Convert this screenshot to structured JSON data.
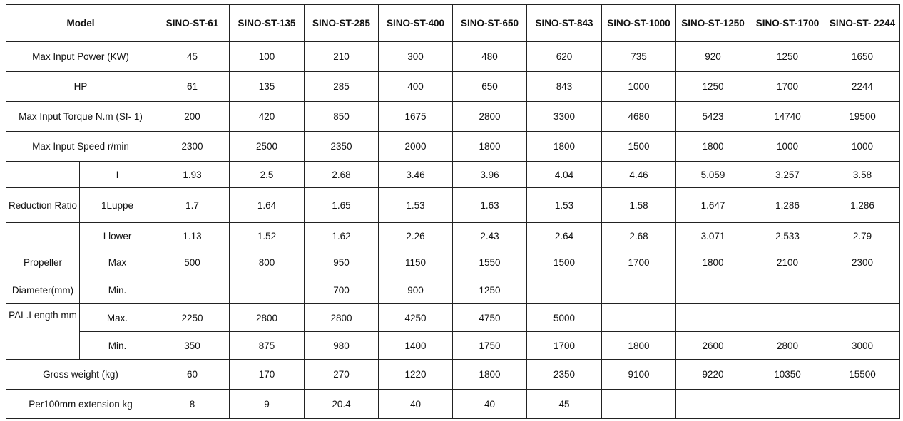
{
  "table": {
    "header_label": "Model",
    "models": [
      "SINO-ST-61",
      "SINO-ST-135",
      "SINO-ST-285",
      "SINO-ST-400",
      "SINO-ST-650",
      "SINO-ST-843",
      "SINO-ST-1000",
      "SINO-ST-1250",
      "SINO-ST-1700",
      "SINO-ST- 2244"
    ],
    "rows": [
      {
        "label": "Max Input Power (KW)",
        "values": [
          "45",
          "100",
          "210",
          "300",
          "480",
          "620",
          "735",
          "920",
          "1250",
          "1650"
        ]
      },
      {
        "label": "HP",
        "values": [
          "61",
          "135",
          "285",
          "400",
          "650",
          "843",
          "1000",
          "1250",
          "1700",
          "2244"
        ]
      },
      {
        "label": "Max Input Torque N.m (Sf- 1)",
        "values": [
          "200",
          "420",
          "850",
          "1675",
          "2800",
          "3300",
          "4680",
          "5423",
          "14740",
          "19500"
        ]
      },
      {
        "label": "Max Input Speed r/min",
        "values": [
          "2300",
          "2500",
          "2350",
          "2000",
          "1800",
          "1800",
          "1500",
          "1800",
          "1000",
          "1000"
        ]
      },
      {
        "label": "",
        "sub": "I",
        "values": [
          "1.93",
          "2.5",
          "2.68",
          "3.46",
          "3.96",
          "4.04",
          "4.46",
          "5.059",
          "3.257",
          "3.58"
        ]
      },
      {
        "label": "Reduction Ratio",
        "sub": "1Luppe",
        "values": [
          "1.7",
          "1.64",
          "1.65",
          "1.53",
          "1.63",
          "1.53",
          "1.58",
          "1.647",
          "1.286",
          "1.286"
        ]
      },
      {
        "label": "",
        "sub": "I lower",
        "values": [
          "1.13",
          "1.52",
          "1.62",
          "2.26",
          "2.43",
          "2.64",
          "2.68",
          "3.071",
          "2.533",
          "2.79"
        ]
      },
      {
        "label": "Propeller",
        "sub": "Max",
        "values": [
          "500",
          "800",
          "950",
          "1150",
          "1550",
          "1500",
          "1700",
          "1800",
          "2100",
          "2300"
        ]
      },
      {
        "label": "Diameter(mm)",
        "sub": "Min.",
        "values": [
          "",
          "",
          "700",
          "900",
          "1250",
          "",
          "",
          "",
          "",
          ""
        ]
      },
      {
        "label": "PAL.Length mm",
        "span": 2,
        "sub": "Max.",
        "values": [
          "2250",
          "2800",
          "2800",
          "4250",
          "4750",
          "5000",
          "",
          "",
          "",
          ""
        ]
      },
      {
        "label": "",
        "spanned": true,
        "sub": "Min.",
        "values": [
          "350",
          "875",
          "980",
          "1400",
          "1750",
          "1700",
          "1800",
          "2600",
          "2800",
          "3000"
        ]
      },
      {
        "label": "Gross weight (kg)",
        "values": [
          "60",
          "170",
          "270",
          "1220",
          "1800",
          "2350",
          "9100",
          "9220",
          "10350",
          "15500"
        ]
      },
      {
        "label": "Per100mm extension kg",
        "values": [
          "8",
          "9",
          "20.4",
          "40",
          "40",
          "45",
          "",
          "",
          "",
          ""
        ]
      }
    ]
  }
}
